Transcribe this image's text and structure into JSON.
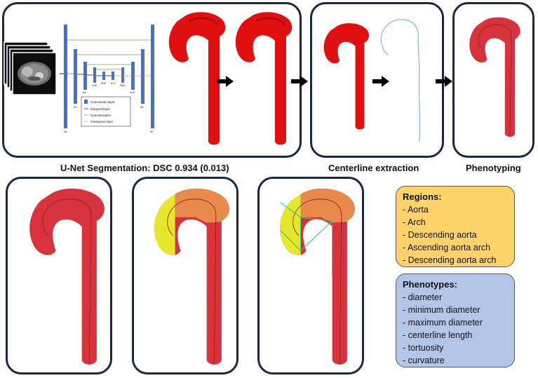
{
  "captions": {
    "segmentation": "U-Net Segmentation: DSC 0.934 (0.013)",
    "centerline": "Centerline extraction",
    "phenotyping": "Phenotyping"
  },
  "unet": {
    "numbers": [
      "16",
      "32",
      "64",
      "128",
      "256",
      "512",
      "256",
      "128",
      "64",
      "32"
    ],
    "legend": [
      "Convolution layer",
      "Maxpool layer",
      "Concatenation",
      "Transpose layer"
    ]
  },
  "regions": {
    "title": "Regions:",
    "items": [
      "- Aorta",
      "- Arch",
      "- Descending aorta",
      "- Ascending aorta arch",
      "- Descending aorta arch"
    ]
  },
  "phenotypes": {
    "title": "Phenotypes:",
    "items": [
      "- diameter",
      "- minimum diameter",
      "- maximum diameter",
      "- centerline length",
      "- tortuosity",
      "- curvature"
    ]
  },
  "colors": {
    "panel_border": "#1c2740",
    "aorta_red": "#e01010",
    "aorta_pink": "#d8333d",
    "arch_orange": "#e88a4a",
    "ascending_yellow": "#e6e62a",
    "centerline_blue": "#7fb7d9",
    "regions_bg": "#fdd36a",
    "phenotypes_bg": "#b4c6e7",
    "unet_blue": "#4472c4"
  }
}
